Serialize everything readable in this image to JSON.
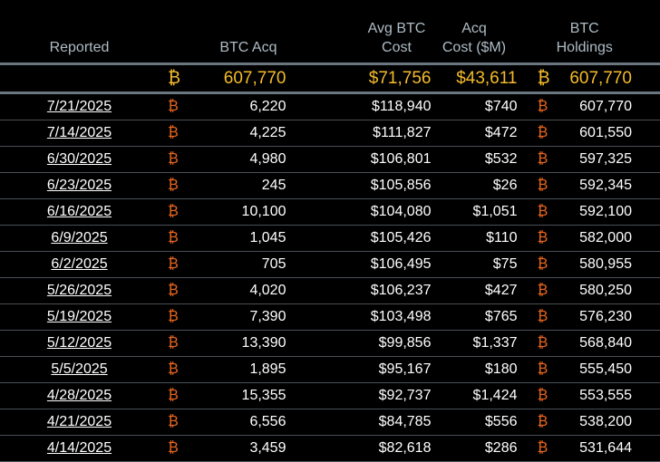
{
  "headers": {
    "reported": "Reported",
    "btc_acq": "BTC Acq",
    "avg_cost_1": "Avg BTC",
    "avg_cost_2": "Cost",
    "acq_cost_1": "Acq",
    "acq_cost_2": "Cost ($M)",
    "holdings_1": "BTC",
    "holdings_2": "Holdings"
  },
  "btc_symbol": "₿",
  "totals": {
    "btc_acq": "607,770",
    "avg_cost": "$71,756",
    "acq_cost": "$43,611",
    "holdings": "607,770"
  },
  "rows": [
    {
      "date": "7/21/2025",
      "btc_acq": "6,220",
      "avg_cost": "$118,940",
      "acq_cost": "$740",
      "holdings": "607,770"
    },
    {
      "date": "7/14/2025",
      "btc_acq": "4,225",
      "avg_cost": "$111,827",
      "acq_cost": "$472",
      "holdings": "601,550"
    },
    {
      "date": "6/30/2025",
      "btc_acq": "4,980",
      "avg_cost": "$106,801",
      "acq_cost": "$532",
      "holdings": "597,325"
    },
    {
      "date": "6/23/2025",
      "btc_acq": "245",
      "avg_cost": "$105,856",
      "acq_cost": "$26",
      "holdings": "592,345"
    },
    {
      "date": "6/16/2025",
      "btc_acq": "10,100",
      "avg_cost": "$104,080",
      "acq_cost": "$1,051",
      "holdings": "592,100"
    },
    {
      "date": "6/9/2025",
      "btc_acq": "1,045",
      "avg_cost": "$105,426",
      "acq_cost": "$110",
      "holdings": "582,000"
    },
    {
      "date": "6/2/2025",
      "btc_acq": "705",
      "avg_cost": "$106,495",
      "acq_cost": "$75",
      "holdings": "580,955"
    },
    {
      "date": "5/26/2025",
      "btc_acq": "4,020",
      "avg_cost": "$106,237",
      "acq_cost": "$427",
      "holdings": "580,250"
    },
    {
      "date": "5/19/2025",
      "btc_acq": "7,390",
      "avg_cost": "$103,498",
      "acq_cost": "$765",
      "holdings": "576,230"
    },
    {
      "date": "5/12/2025",
      "btc_acq": "13,390",
      "avg_cost": "$99,856",
      "acq_cost": "$1,337",
      "holdings": "568,840"
    },
    {
      "date": "5/5/2025",
      "btc_acq": "1,895",
      "avg_cost": "$95,167",
      "acq_cost": "$180",
      "holdings": "555,450"
    },
    {
      "date": "4/28/2025",
      "btc_acq": "15,355",
      "avg_cost": "$92,737",
      "acq_cost": "$1,424",
      "holdings": "553,555"
    },
    {
      "date": "4/21/2025",
      "btc_acq": "6,556",
      "avg_cost": "$84,785",
      "acq_cost": "$556",
      "holdings": "538,200"
    },
    {
      "date": "4/14/2025",
      "btc_acq": "3,459",
      "avg_cost": "$82,618",
      "acq_cost": "$286",
      "holdings": "531,644"
    }
  ]
}
